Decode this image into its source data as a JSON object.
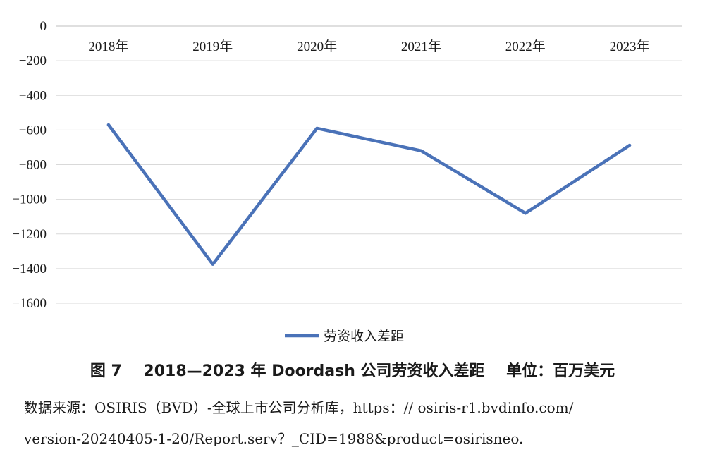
{
  "chart_data": {
    "type": "line",
    "categories": [
      "2018年",
      "2019年",
      "2020年",
      "2021年",
      "2022年",
      "2023年"
    ],
    "series": [
      {
        "name": "劳资收入差距",
        "values": [
          -570,
          -1375,
          -590,
          -720,
          -1080,
          -688
        ],
        "color": "#4a72b8"
      }
    ],
    "yticks": [
      "0",
      "−200",
      "−400",
      "−600",
      "−800",
      "−1000",
      "−1200",
      "−1400",
      "−1600"
    ],
    "ylim": [
      -1600,
      0
    ],
    "grid": true,
    "legend_position": "bottom"
  },
  "caption": "图 7    2018—2023 年 Doordash 公司劳资收入差距    单位：百万美元",
  "source_line1": "数据来源：OSIRIS（BVD）-全球上市公司分析库，https：// osiris-r1.bvdinfo.com/",
  "source_line2": "version-20240405-1-20/Report.serv？_CID=1988&product=osirisneo."
}
